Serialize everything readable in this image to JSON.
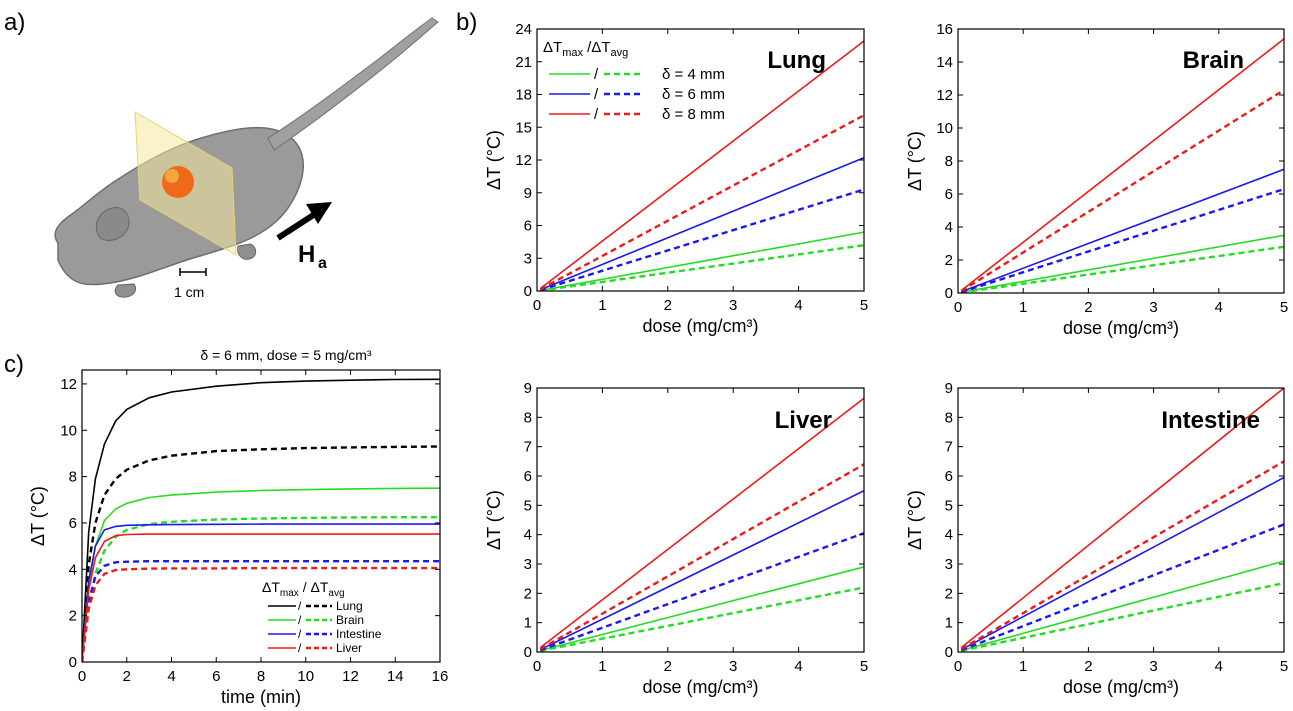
{
  "panels": {
    "a": {
      "letter": "a)",
      "field_label": "H",
      "field_sub": "a",
      "scale_label": "1 cm"
    },
    "c_title": "δ = 6 mm, dose = 5 mg/cm³"
  },
  "legend_b": {
    "header": "ΔT",
    "header_max": "max",
    "header_sep": " /ΔT",
    "header_avg": "avg",
    "slash": "/",
    "entries": [
      "δ = 4 mm",
      "δ = 6 mm",
      "δ = 8 mm"
    ],
    "colors": [
      "#22dd22",
      "#1a1aee",
      "#ee1a1a"
    ]
  },
  "legend_c": {
    "header": "ΔT",
    "header_max": "max",
    "header_sep": " / ΔT",
    "header_avg": "avg",
    "slash": "/",
    "entries": [
      "Lung",
      "Brain",
      "Intestine",
      "Liver"
    ],
    "colors": [
      "#000000",
      "#22dd22",
      "#1a1aee",
      "#ee1a1a"
    ]
  },
  "chart_data": [
    {
      "panel_letter": "b)",
      "title": "Lung",
      "type": "line",
      "xlabel": "dose (mg/cm³)",
      "ylabel": "ΔT (°C)",
      "xlim": [
        0,
        5
      ],
      "ylim": [
        0,
        24
      ],
      "xticks": [
        0,
        1,
        2,
        3,
        4,
        5
      ],
      "yticks": [
        0,
        3,
        6,
        9,
        12,
        15,
        18,
        21,
        24
      ],
      "series": [
        {
          "name": "δ = 4 mm",
          "kind": "ΔTmax",
          "color": "#22dd22",
          "dash": false,
          "x": [
            0.05,
            5
          ],
          "y": [
            0.05,
            5.4
          ]
        },
        {
          "name": "δ = 4 mm",
          "kind": "ΔTavg",
          "color": "#22dd22",
          "dash": true,
          "x": [
            0.05,
            5
          ],
          "y": [
            0.04,
            4.2
          ]
        },
        {
          "name": "δ = 6 mm",
          "kind": "ΔTmax",
          "color": "#1a1aee",
          "dash": false,
          "x": [
            0.05,
            5
          ],
          "y": [
            0.12,
            12.2
          ]
        },
        {
          "name": "δ = 6 mm",
          "kind": "ΔTavg",
          "color": "#1a1aee",
          "dash": true,
          "x": [
            0.05,
            5
          ],
          "y": [
            0.09,
            9.3
          ]
        },
        {
          "name": "δ = 8 mm",
          "kind": "ΔTmax",
          "color": "#ee1a1a",
          "dash": false,
          "x": [
            0.05,
            5
          ],
          "y": [
            0.23,
            22.9
          ]
        },
        {
          "name": "δ = 8 mm",
          "kind": "ΔTavg",
          "color": "#ee1a1a",
          "dash": true,
          "x": [
            0.05,
            5
          ],
          "y": [
            0.16,
            16.1
          ]
        }
      ]
    },
    {
      "panel_letter": "",
      "title": "Brain",
      "type": "line",
      "xlabel": "dose (mg/cm³)",
      "ylabel": "ΔT (°C)",
      "xlim": [
        0,
        5
      ],
      "ylim": [
        0,
        16
      ],
      "xticks": [
        0,
        1,
        2,
        3,
        4,
        5
      ],
      "yticks": [
        0,
        2,
        4,
        6,
        8,
        10,
        12,
        14,
        16
      ],
      "series": [
        {
          "name": "δ = 4 mm",
          "kind": "ΔTmax",
          "color": "#22dd22",
          "dash": false,
          "x": [
            0.05,
            5
          ],
          "y": [
            0.04,
            3.5
          ]
        },
        {
          "name": "δ = 4 mm",
          "kind": "ΔTavg",
          "color": "#22dd22",
          "dash": true,
          "x": [
            0.05,
            5
          ],
          "y": [
            0.03,
            2.8
          ]
        },
        {
          "name": "δ = 6 mm",
          "kind": "ΔTmax",
          "color": "#1a1aee",
          "dash": false,
          "x": [
            0.05,
            5
          ],
          "y": [
            0.08,
            7.5
          ]
        },
        {
          "name": "δ = 6 mm",
          "kind": "ΔTavg",
          "color": "#1a1aee",
          "dash": true,
          "x": [
            0.05,
            5
          ],
          "y": [
            0.06,
            6.3
          ]
        },
        {
          "name": "δ = 8 mm",
          "kind": "ΔTmax",
          "color": "#ee1a1a",
          "dash": false,
          "x": [
            0.05,
            5
          ],
          "y": [
            0.15,
            15.4
          ]
        },
        {
          "name": "δ = 8 mm",
          "kind": "ΔTavg",
          "color": "#ee1a1a",
          "dash": true,
          "x": [
            0.05,
            5
          ],
          "y": [
            0.12,
            12.3
          ]
        }
      ]
    },
    {
      "panel_letter": "",
      "title": "Liver",
      "type": "line",
      "xlabel": "dose (mg/cm³)",
      "ylabel": "ΔT (°C)",
      "xlim": [
        0,
        5
      ],
      "ylim": [
        0,
        9
      ],
      "xticks": [
        0,
        1,
        2,
        3,
        4,
        5
      ],
      "yticks": [
        0,
        1,
        2,
        3,
        4,
        5,
        6,
        7,
        8,
        9
      ],
      "series": [
        {
          "name": "δ = 4 mm",
          "kind": "ΔTmax",
          "color": "#22dd22",
          "dash": false,
          "x": [
            0.05,
            5
          ],
          "y": [
            0.05,
            2.9
          ]
        },
        {
          "name": "δ = 4 mm",
          "kind": "ΔTavg",
          "color": "#22dd22",
          "dash": true,
          "x": [
            0.05,
            5
          ],
          "y": [
            0.04,
            2.2
          ]
        },
        {
          "name": "δ = 6 mm",
          "kind": "ΔTmax",
          "color": "#1a1aee",
          "dash": false,
          "x": [
            0.05,
            5
          ],
          "y": [
            0.08,
            5.5
          ]
        },
        {
          "name": "δ = 6 mm",
          "kind": "ΔTavg",
          "color": "#1a1aee",
          "dash": true,
          "x": [
            0.05,
            5
          ],
          "y": [
            0.06,
            4.05
          ]
        },
        {
          "name": "δ = 8 mm",
          "kind": "ΔTmax",
          "color": "#ee1a1a",
          "dash": false,
          "x": [
            0.05,
            5
          ],
          "y": [
            0.15,
            8.65
          ]
        },
        {
          "name": "δ = 8 mm",
          "kind": "ΔTavg",
          "color": "#ee1a1a",
          "dash": true,
          "x": [
            0.05,
            5
          ],
          "y": [
            0.1,
            6.4
          ]
        }
      ]
    },
    {
      "panel_letter": "",
      "title": "Intestine",
      "type": "line",
      "xlabel": "dose (mg/cm³)",
      "ylabel": "ΔT (°C)",
      "xlim": [
        0,
        5
      ],
      "ylim": [
        0,
        9
      ],
      "xticks": [
        0,
        1,
        2,
        3,
        4,
        5
      ],
      "yticks": [
        0,
        1,
        2,
        3,
        4,
        5,
        6,
        7,
        8,
        9
      ],
      "series": [
        {
          "name": "δ = 4 mm",
          "kind": "ΔTmax",
          "color": "#22dd22",
          "dash": false,
          "x": [
            0.05,
            5
          ],
          "y": [
            0.05,
            3.1
          ]
        },
        {
          "name": "δ = 4 mm",
          "kind": "ΔTavg",
          "color": "#22dd22",
          "dash": true,
          "x": [
            0.05,
            5
          ],
          "y": [
            0.04,
            2.35
          ]
        },
        {
          "name": "δ = 6 mm",
          "kind": "ΔTmax",
          "color": "#1a1aee",
          "dash": false,
          "x": [
            0.05,
            5
          ],
          "y": [
            0.08,
            5.95
          ]
        },
        {
          "name": "δ = 6 mm",
          "kind": "ΔTavg",
          "color": "#1a1aee",
          "dash": true,
          "x": [
            0.05,
            5
          ],
          "y": [
            0.06,
            4.35
          ]
        },
        {
          "name": "δ = 8 mm",
          "kind": "ΔTmax",
          "color": "#ee1a1a",
          "dash": false,
          "x": [
            0.05,
            5
          ],
          "y": [
            0.15,
            9.0
          ]
        },
        {
          "name": "δ = 8 mm",
          "kind": "ΔTavg",
          "color": "#ee1a1a",
          "dash": true,
          "x": [
            0.05,
            5
          ],
          "y": [
            0.1,
            6.5
          ]
        }
      ]
    },
    {
      "panel_letter": "c)",
      "title": "",
      "type": "line",
      "xlabel": "time (min)",
      "ylabel": "ΔT (°C)",
      "xlim": [
        0,
        16
      ],
      "ylim": [
        0,
        12.6
      ],
      "xticks": [
        0,
        2,
        4,
        6,
        8,
        10,
        12,
        14,
        16
      ],
      "yticks": [
        0,
        2,
        4,
        6,
        8,
        10,
        12
      ],
      "series": [
        {
          "name": "Lung",
          "kind": "ΔTmax",
          "color": "#000000",
          "dash": false,
          "x": [
            0,
            0.3,
            0.6,
            1,
            1.5,
            2,
            3,
            4,
            6,
            8,
            10,
            12,
            14,
            16
          ],
          "y": [
            0,
            5.6,
            7.9,
            9.4,
            10.4,
            10.9,
            11.4,
            11.65,
            11.9,
            12.05,
            12.12,
            12.16,
            12.19,
            12.2
          ]
        },
        {
          "name": "Lung",
          "kind": "ΔTavg",
          "color": "#000000",
          "dash": true,
          "x": [
            0,
            0.3,
            0.6,
            1,
            1.5,
            2,
            3,
            4,
            6,
            8,
            10,
            12,
            14,
            16
          ],
          "y": [
            0,
            4.2,
            6.0,
            7.2,
            7.9,
            8.3,
            8.7,
            8.9,
            9.1,
            9.18,
            9.23,
            9.26,
            9.28,
            9.3
          ]
        },
        {
          "name": "Brain",
          "kind": "ΔTmax",
          "color": "#22dd22",
          "dash": false,
          "x": [
            0,
            0.3,
            0.6,
            1,
            1.5,
            2,
            3,
            4,
            6,
            8,
            10,
            12,
            14,
            16
          ],
          "y": [
            0,
            3.3,
            5.0,
            6.1,
            6.6,
            6.85,
            7.1,
            7.2,
            7.33,
            7.4,
            7.44,
            7.47,
            7.49,
            7.5
          ]
        },
        {
          "name": "Brain",
          "kind": "ΔTavg",
          "color": "#22dd22",
          "dash": true,
          "x": [
            0,
            0.3,
            0.6,
            1,
            1.5,
            2,
            3,
            4,
            6,
            8,
            10,
            12,
            14,
            16
          ],
          "y": [
            0,
            2.3,
            3.8,
            4.8,
            5.4,
            5.7,
            5.95,
            6.05,
            6.15,
            6.19,
            6.22,
            6.24,
            6.25,
            6.25
          ]
        },
        {
          "name": "Intestine",
          "kind": "ΔTmax",
          "color": "#1a1aee",
          "dash": false,
          "x": [
            0,
            0.3,
            0.6,
            1,
            1.5,
            2,
            3,
            4,
            6,
            8,
            10,
            12,
            14,
            16
          ],
          "y": [
            0,
            3.5,
            5.0,
            5.7,
            5.85,
            5.9,
            5.92,
            5.93,
            5.94,
            5.95,
            5.95,
            5.95,
            5.95,
            5.95
          ]
        },
        {
          "name": "Intestine",
          "kind": "ΔTavg",
          "color": "#1a1aee",
          "dash": true,
          "x": [
            0,
            0.3,
            0.6,
            1,
            1.5,
            2,
            3,
            4,
            6,
            8,
            10,
            12,
            14,
            16
          ],
          "y": [
            0,
            2.6,
            3.7,
            4.15,
            4.3,
            4.33,
            4.35,
            4.35,
            4.35,
            4.35,
            4.35,
            4.35,
            4.35,
            4.35
          ]
        },
        {
          "name": "Liver",
          "kind": "ΔTmax",
          "color": "#ee1a1a",
          "dash": false,
          "x": [
            0,
            0.3,
            0.6,
            1,
            1.5,
            2,
            3,
            4,
            6,
            8,
            10,
            12,
            14,
            16
          ],
          "y": [
            0,
            3.1,
            4.5,
            5.2,
            5.45,
            5.5,
            5.52,
            5.52,
            5.52,
            5.52,
            5.52,
            5.52,
            5.52,
            5.52
          ]
        },
        {
          "name": "Liver",
          "kind": "ΔTavg",
          "color": "#ee1a1a",
          "dash": true,
          "x": [
            0,
            0.3,
            0.6,
            1,
            1.5,
            2,
            3,
            4,
            6,
            8,
            10,
            12,
            14,
            16
          ],
          "y": [
            0,
            2.3,
            3.3,
            3.8,
            3.97,
            4.0,
            4.03,
            4.04,
            4.04,
            4.05,
            4.05,
            4.05,
            4.05,
            4.05
          ]
        }
      ]
    }
  ]
}
